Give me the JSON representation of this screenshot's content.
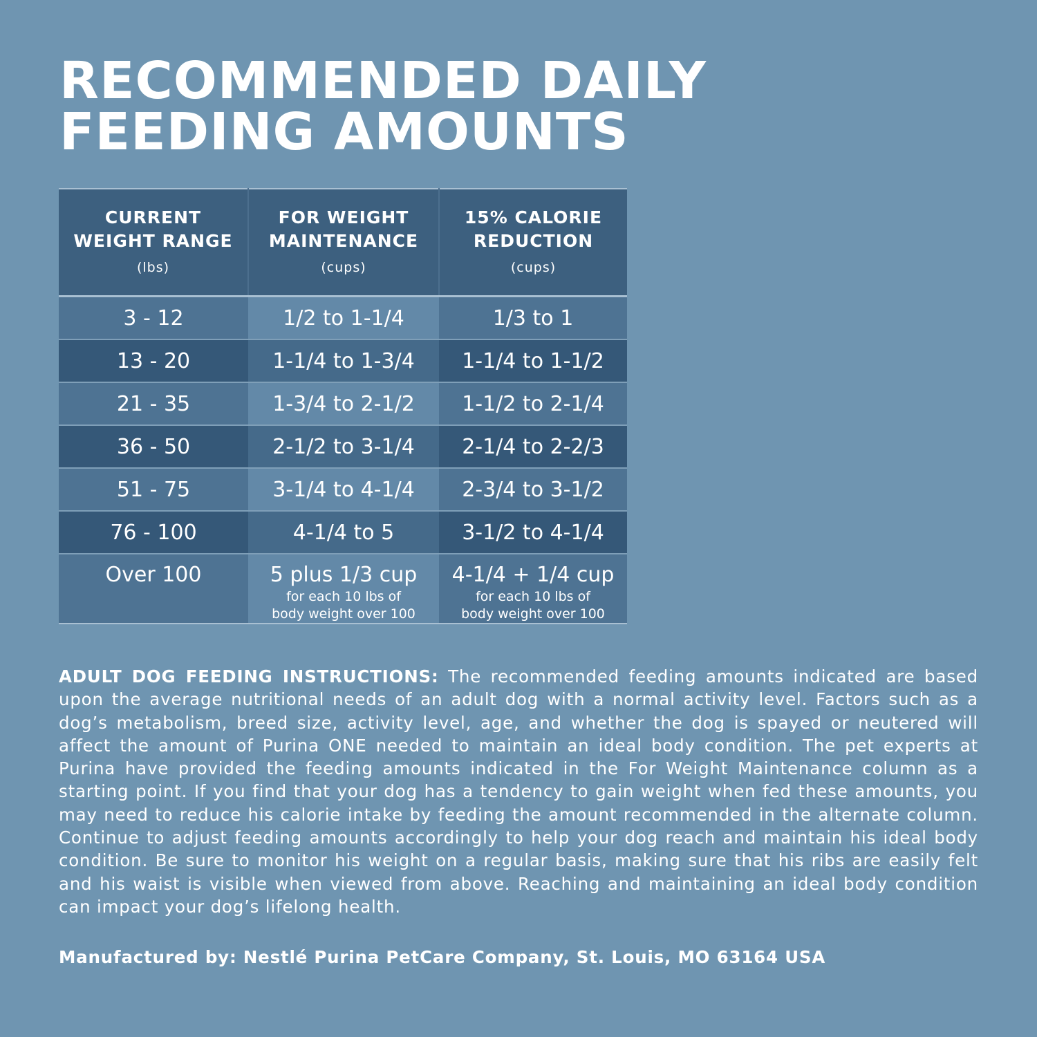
{
  "title": {
    "line1": "RECOMMENDED DAILY",
    "line2": "FEEDING AMOUNTS"
  },
  "table": {
    "headers": [
      {
        "line1": "CURRENT",
        "line2": "WEIGHT RANGE",
        "unit": "(lbs)"
      },
      {
        "line1": "FOR WEIGHT",
        "line2": "MAINTENANCE",
        "unit": "(cups)"
      },
      {
        "line1": "15% CALORIE",
        "line2": "REDUCTION",
        "unit": "(cups)"
      }
    ],
    "rows": [
      [
        "3 - 12",
        "1/2 to 1-1/4",
        "1/3 to 1"
      ],
      [
        "13 - 20",
        "1-1/4 to 1-3/4",
        "1-1/4 to 1-1/2"
      ],
      [
        "21 - 35",
        "1-3/4 to 2-1/2",
        "1-1/2 to 2-1/4"
      ],
      [
        "36 - 50",
        "2-1/2 to 3-1/4",
        "2-1/4 to 2-2/3"
      ],
      [
        "51 - 75",
        "3-1/4 to 4-1/4",
        "2-3/4 to 3-1/2"
      ],
      [
        "76 - 100",
        "4-1/4 to 5",
        "3-1/2 to 4-1/4"
      ]
    ],
    "last_row": {
      "weight": "Over 100",
      "maintenance_main": "5 plus 1/3 cup",
      "maintenance_note1": "for each 10 lbs of",
      "maintenance_note2": "body weight over 100",
      "reduction_main": "4-1/4 + 1/4 cup",
      "reduction_note1": "for each 10 lbs of",
      "reduction_note2": "body weight over 100"
    }
  },
  "instructions": {
    "heading": "ADULT DOG FEEDING INSTRUCTIONS:",
    "body": "The recommended feeding amounts indicated are based upon the average nutritional needs of an adult dog with a normal activity level. Factors such as a dog’s metabolism, breed size, activity level, age, and whether the dog is spayed or neutered will affect the amount of Purina ONE needed to maintain an ideal body condition. The pet experts at Purina have provided the feeding amounts indicated in the For Weight Maintenance column as a starting point. If you find that your dog has a tendency to gain weight when fed these amounts, you may need to reduce his calorie intake by feeding the amount recommended in the alternate column. Continue to adjust feeding amounts accordingly to help your dog reach and maintain his ideal body condition. Be sure to monitor his weight on a regular basis, making sure that his ribs are easily felt and his waist is visible when viewed from above. Reaching and maintaining an ideal body condition can impact your dog’s lifelong health."
  },
  "manufacturer": "Manufactured by: Nestlé Purina PetCare Company, St. Louis, MO 63164 USA",
  "colors": {
    "background": "#6f95b1",
    "header_bg": "#3d607f",
    "row_dark": "#355878",
    "row_light": "#4e7393",
    "text": "#ffffff"
  }
}
